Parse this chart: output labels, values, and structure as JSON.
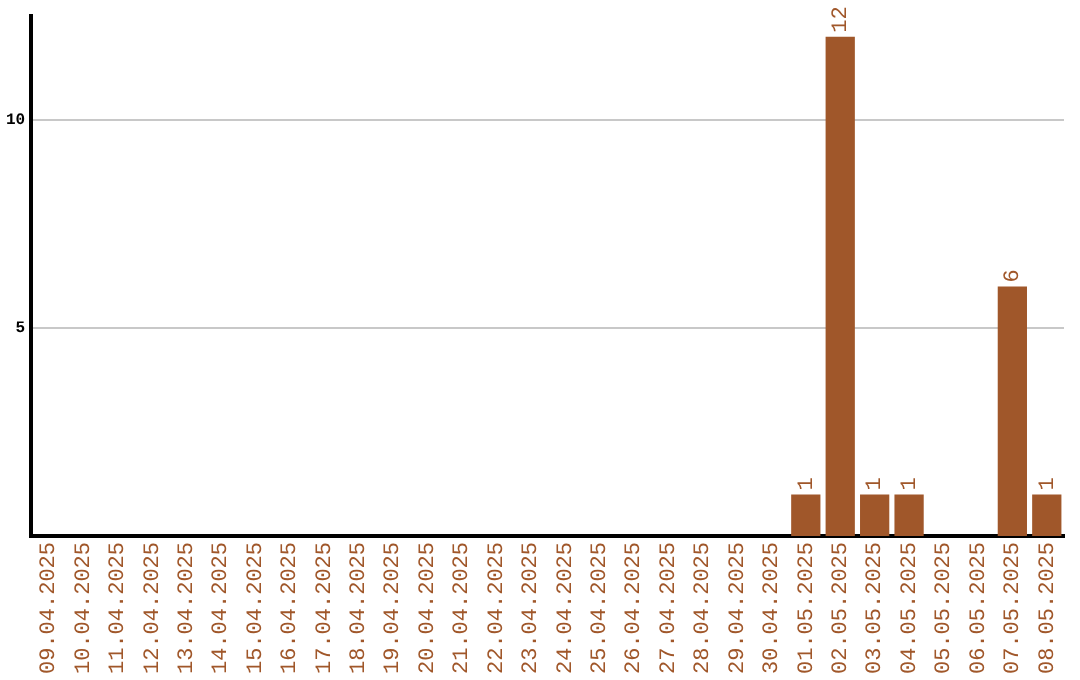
{
  "chart_data": {
    "type": "bar",
    "categories": [
      "09.04.2025",
      "10.04.2025",
      "11.04.2025",
      "12.04.2025",
      "13.04.2025",
      "14.04.2025",
      "15.04.2025",
      "16.04.2025",
      "17.04.2025",
      "18.04.2025",
      "19.04.2025",
      "20.04.2025",
      "21.04.2025",
      "22.04.2025",
      "23.04.2025",
      "24.04.2025",
      "25.04.2025",
      "26.04.2025",
      "27.04.2025",
      "28.04.2025",
      "29.04.2025",
      "30.04.2025",
      "01.05.2025",
      "02.05.2025",
      "03.05.2025",
      "04.05.2025",
      "05.05.2025",
      "06.05.2025",
      "07.05.2025",
      "08.05.2025"
    ],
    "values": [
      0,
      0,
      0,
      0,
      0,
      0,
      0,
      0,
      0,
      0,
      0,
      0,
      0,
      0,
      0,
      0,
      0,
      0,
      0,
      0,
      0,
      0,
      1,
      12,
      1,
      1,
      0,
      0,
      6,
      1
    ],
    "value_labels": [
      null,
      null,
      null,
      null,
      null,
      null,
      null,
      null,
      null,
      null,
      null,
      null,
      null,
      null,
      null,
      null,
      null,
      null,
      null,
      null,
      null,
      null,
      "1",
      "12",
      "1",
      "1",
      null,
      null,
      "6",
      "1"
    ],
    "color": "#a0572a",
    "ylim": [
      0,
      12.5
    ],
    "yticks": [
      5,
      10
    ],
    "grid": "y",
    "legend": false
  }
}
